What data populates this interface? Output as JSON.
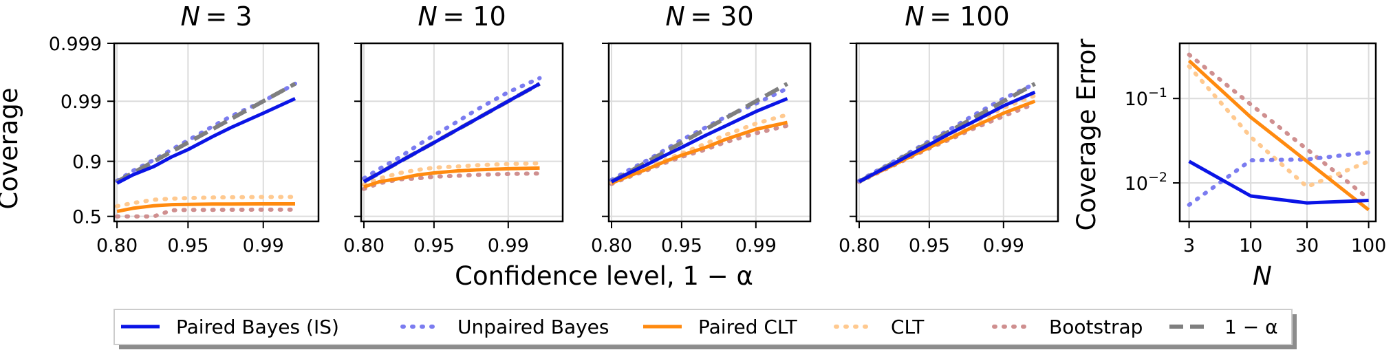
{
  "figure": {
    "ylabel_left": "Coverage",
    "xlabel_shared": "Confidence level, 1 − α"
  },
  "colors": {
    "paired_bayes": "#0a14e6",
    "unpaired_bayes": "#7b7cf0",
    "paired_clt": "#ff8a0f",
    "clt": "#ffc98f",
    "bootstrap": "#cf8f8f",
    "nominal": "#7f7f7f"
  },
  "legend": {
    "items": [
      {
        "key": "paired_bayes",
        "label": "Paired Bayes (IS)"
      },
      {
        "key": "unpaired_bayes",
        "label": "Unpaired Bayes"
      },
      {
        "key": "paired_clt",
        "label": "Paired CLT"
      },
      {
        "key": "clt",
        "label": "CLT"
      },
      {
        "key": "bootstrap",
        "label": "Bootstrap"
      },
      {
        "key": "nominal",
        "label": "1 − α"
      }
    ]
  },
  "chart_data": [
    {
      "type": "line",
      "title": "N = 3",
      "n_italic": "N",
      "n_value": "= 3",
      "xscale": "logit",
      "yscale": "logit",
      "xlim": [
        0.79,
        0.997
      ],
      "ylim": [
        0.45,
        0.999
      ],
      "xticks": [
        0.8,
        0.95,
        0.99
      ],
      "xticklabels": [
        "0.80",
        "0.95",
        "0.99"
      ],
      "yticks": [
        0.5,
        0.9,
        0.99,
        0.999
      ],
      "yticklabels": [
        "0.5",
        "0.9",
        "0.99",
        "0.999"
      ],
      "grid": true,
      "x": [
        0.8,
        0.85,
        0.9,
        0.93,
        0.95,
        0.97,
        0.98,
        0.99,
        0.995
      ],
      "series": [
        {
          "key": "paired_bayes",
          "name": "Paired Bayes (IS)",
          "style": "solid",
          "values": [
            0.79,
            0.84,
            0.88,
            0.915,
            0.935,
            0.96,
            0.972,
            0.984,
            0.991
          ]
        },
        {
          "key": "unpaired_bayes",
          "name": "Unpaired Bayes",
          "style": "dotted",
          "values": [
            0.805,
            0.86,
            0.905,
            0.935,
            0.954,
            0.973,
            0.982,
            0.99,
            0.995
          ]
        },
        {
          "key": "paired_clt",
          "name": "Paired CLT",
          "style": "solid",
          "values": [
            0.55,
            0.58,
            0.605,
            0.615,
            0.618,
            0.62,
            0.621,
            0.622,
            0.622
          ]
        },
        {
          "key": "clt",
          "name": "CLT",
          "style": "dotted",
          "values": [
            0.6,
            0.63,
            0.66,
            0.67,
            0.675,
            0.68,
            0.682,
            0.684,
            0.685
          ]
        },
        {
          "key": "bootstrap",
          "name": "Bootstrap",
          "style": "dotted",
          "values": [
            0.5,
            0.5,
            0.5,
            0.56,
            0.565,
            0.565,
            0.566,
            0.567,
            0.567
          ]
        },
        {
          "key": "nominal",
          "name": "1 − α",
          "style": "dashed",
          "values": [
            0.8,
            0.85,
            0.9,
            0.93,
            0.95,
            0.97,
            0.98,
            0.99,
            0.995
          ]
        }
      ]
    },
    {
      "type": "line",
      "title": "N = 10",
      "n_italic": "N",
      "n_value": "= 10",
      "xscale": "logit",
      "yscale": "logit",
      "xlim": [
        0.79,
        0.997
      ],
      "ylim": [
        0.45,
        0.999
      ],
      "xticks": [
        0.8,
        0.95,
        0.99
      ],
      "xticklabels": [
        "0.80",
        "0.95",
        "0.99"
      ],
      "yticks": [
        0.5,
        0.9,
        0.99,
        0.999
      ],
      "yticklabels": [
        "",
        "",
        "",
        ""
      ],
      "grid": true,
      "x": [
        0.8,
        0.85,
        0.9,
        0.93,
        0.95,
        0.97,
        0.98,
        0.99,
        0.995
      ],
      "series": [
        {
          "key": "paired_bayes",
          "name": "Paired Bayes (IS)",
          "style": "solid",
          "values": [
            0.8,
            0.85,
            0.9,
            0.93,
            0.95,
            0.97,
            0.98,
            0.99,
            0.995
          ]
        },
        {
          "key": "unpaired_bayes",
          "name": "Unpaired Bayes",
          "style": "dotted",
          "values": [
            0.82,
            0.87,
            0.915,
            0.945,
            0.962,
            0.978,
            0.986,
            0.993,
            0.996
          ]
        },
        {
          "key": "paired_clt",
          "name": "Paired CLT",
          "style": "solid",
          "values": [
            0.765,
            0.8,
            0.82,
            0.84,
            0.85,
            0.86,
            0.865,
            0.87,
            0.873
          ]
        },
        {
          "key": "clt",
          "name": "CLT",
          "style": "dotted",
          "values": [
            0.78,
            0.82,
            0.85,
            0.865,
            0.875,
            0.88,
            0.885,
            0.89,
            0.893
          ]
        },
        {
          "key": "bootstrap",
          "name": "Bootstrap",
          "style": "dotted",
          "values": [
            0.75,
            0.79,
            0.815,
            0.82,
            0.83,
            0.835,
            0.84,
            0.845,
            0.847
          ]
        },
        {
          "key": "nominal",
          "name": "1 − α",
          "style": "dashed",
          "values": [
            0.8,
            0.85,
            0.9,
            0.93,
            0.95,
            0.97,
            0.98,
            0.99,
            0.995
          ]
        }
      ]
    },
    {
      "type": "line",
      "title": "N = 30",
      "n_italic": "N",
      "n_value": "= 30",
      "xscale": "logit",
      "yscale": "logit",
      "xlim": [
        0.79,
        0.997
      ],
      "ylim": [
        0.45,
        0.999
      ],
      "xticks": [
        0.8,
        0.95,
        0.99
      ],
      "xticklabels": [
        "0.80",
        "0.95",
        "0.99"
      ],
      "yticks": [
        0.5,
        0.9,
        0.99,
        0.999
      ],
      "yticklabels": [
        "",
        "",
        "",
        ""
      ],
      "grid": true,
      "x": [
        0.8,
        0.85,
        0.9,
        0.93,
        0.95,
        0.97,
        0.98,
        0.99,
        0.995
      ],
      "series": [
        {
          "key": "paired_bayes",
          "name": "Paired Bayes (IS)",
          "style": "solid",
          "values": [
            0.8,
            0.845,
            0.89,
            0.92,
            0.94,
            0.962,
            0.973,
            0.985,
            0.991
          ]
        },
        {
          "key": "unpaired_bayes",
          "name": "Unpaired Bayes",
          "style": "dotted",
          "values": [
            0.81,
            0.86,
            0.905,
            0.935,
            0.955,
            0.972,
            0.981,
            0.989,
            0.994
          ]
        },
        {
          "key": "paired_clt",
          "name": "Paired CLT",
          "style": "solid",
          "values": [
            0.79,
            0.83,
            0.87,
            0.9,
            0.92,
            0.94,
            0.955,
            0.97,
            0.977
          ]
        },
        {
          "key": "clt",
          "name": "CLT",
          "style": "dotted",
          "values": [
            0.795,
            0.835,
            0.875,
            0.905,
            0.925,
            0.948,
            0.962,
            0.976,
            0.983
          ]
        },
        {
          "key": "bootstrap",
          "name": "Bootstrap",
          "style": "dotted",
          "values": [
            0.785,
            0.825,
            0.865,
            0.895,
            0.915,
            0.935,
            0.95,
            0.965,
            0.974
          ]
        },
        {
          "key": "nominal",
          "name": "1 − α",
          "style": "dashed",
          "values": [
            0.8,
            0.85,
            0.9,
            0.93,
            0.95,
            0.97,
            0.98,
            0.99,
            0.995
          ]
        }
      ]
    },
    {
      "type": "line",
      "title": "N = 100",
      "n_italic": "N",
      "n_value": "= 100",
      "xscale": "logit",
      "yscale": "logit",
      "xlim": [
        0.79,
        0.997
      ],
      "ylim": [
        0.45,
        0.999
      ],
      "xticks": [
        0.8,
        0.95,
        0.99
      ],
      "xticklabels": [
        "0.80",
        "0.95",
        "0.99"
      ],
      "yticks": [
        0.5,
        0.9,
        0.99,
        0.999
      ],
      "yticklabels": [
        "",
        "",
        "",
        ""
      ],
      "grid": true,
      "x": [
        0.8,
        0.85,
        0.9,
        0.93,
        0.95,
        0.97,
        0.98,
        0.99,
        0.995
      ],
      "series": [
        {
          "key": "paired_bayes",
          "name": "Paired Bayes (IS)",
          "style": "solid",
          "values": [
            0.8,
            0.848,
            0.895,
            0.926,
            0.946,
            0.967,
            0.977,
            0.988,
            0.993
          ]
        },
        {
          "key": "unpaired_bayes",
          "name": "Unpaired Bayes",
          "style": "dotted",
          "values": [
            0.805,
            0.855,
            0.903,
            0.933,
            0.953,
            0.972,
            0.982,
            0.991,
            0.995
          ]
        },
        {
          "key": "paired_clt",
          "name": "Paired CLT",
          "style": "solid",
          "values": [
            0.8,
            0.845,
            0.89,
            0.92,
            0.94,
            0.96,
            0.972,
            0.984,
            0.99
          ]
        },
        {
          "key": "clt",
          "name": "CLT",
          "style": "dotted",
          "values": [
            0.805,
            0.85,
            0.895,
            0.925,
            0.945,
            0.965,
            0.976,
            0.987,
            0.992
          ]
        },
        {
          "key": "bootstrap",
          "name": "Bootstrap",
          "style": "dotted",
          "values": [
            0.798,
            0.843,
            0.888,
            0.918,
            0.938,
            0.958,
            0.97,
            0.982,
            0.989
          ]
        },
        {
          "key": "nominal",
          "name": "1 − α",
          "style": "dashed",
          "values": [
            0.8,
            0.85,
            0.9,
            0.93,
            0.95,
            0.97,
            0.98,
            0.99,
            0.995
          ]
        }
      ]
    },
    {
      "type": "line",
      "title": "",
      "xlabel": "N",
      "ylabel": "Coverage Error",
      "xscale": "log",
      "yscale": "log",
      "xlim": [
        2.5,
        115
      ],
      "ylim": [
        0.0035,
        0.45
      ],
      "xticks": [
        3,
        10,
        30,
        100
      ],
      "xticklabels": [
        "3",
        "10",
        "30",
        "100"
      ],
      "yticks": [
        0.01,
        0.1
      ],
      "yticklabels_base": [
        "10",
        "10"
      ],
      "yticklabels_exp": [
        "−2",
        "−1"
      ],
      "grid": true,
      "x": [
        3,
        10,
        30,
        100
      ],
      "series": [
        {
          "key": "paired_bayes",
          "name": "Paired Bayes (IS)",
          "style": "solid",
          "values": [
            0.018,
            0.007,
            0.0058,
            0.0062
          ]
        },
        {
          "key": "unpaired_bayes",
          "name": "Unpaired Bayes",
          "style": "dotted",
          "values": [
            0.0055,
            0.0185,
            0.019,
            0.023
          ]
        },
        {
          "key": "paired_clt",
          "name": "Paired CLT",
          "style": "solid",
          "values": [
            0.28,
            0.06,
            0.018,
            0.0048
          ]
        },
        {
          "key": "clt",
          "name": "CLT",
          "style": "dotted",
          "values": [
            0.24,
            0.035,
            0.009,
            0.018
          ]
        },
        {
          "key": "bootstrap",
          "name": "Bootstrap",
          "style": "dotted",
          "values": [
            0.33,
            0.085,
            0.025,
            0.0065
          ]
        }
      ]
    }
  ]
}
